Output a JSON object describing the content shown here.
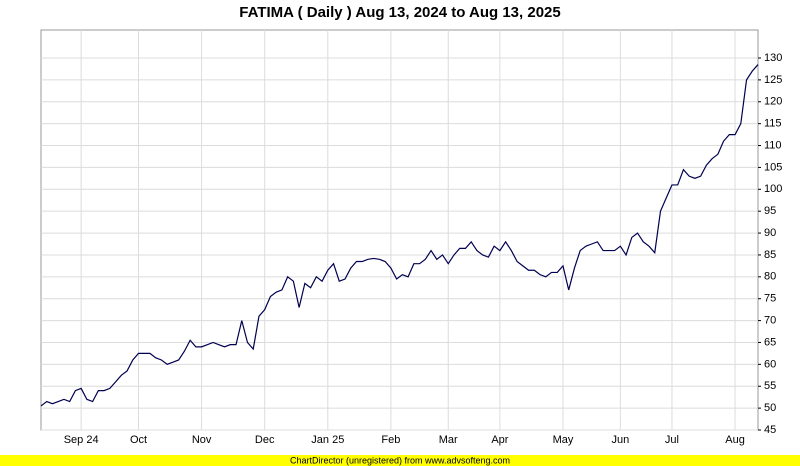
{
  "chart_data": {
    "type": "line",
    "title": "FATIMA ( Daily ) Aug 13, 2024 to Aug 13, 2025",
    "footer": "ChartDirector (unregistered) from www.advsofteng.com",
    "categories": [
      null,
      null,
      null,
      null,
      null,
      null,
      null,
      "Sep 24",
      null,
      null,
      null,
      null,
      null,
      null,
      null,
      null,
      null,
      "Oct",
      null,
      null,
      null,
      null,
      null,
      null,
      null,
      null,
      null,
      null,
      "Nov",
      null,
      null,
      null,
      null,
      null,
      null,
      null,
      null,
      null,
      null,
      "Dec",
      null,
      null,
      null,
      null,
      null,
      null,
      null,
      null,
      null,
      null,
      "Jan 25",
      null,
      null,
      null,
      null,
      null,
      null,
      null,
      null,
      null,
      null,
      "Feb",
      null,
      null,
      null,
      null,
      null,
      null,
      null,
      null,
      null,
      "Mar",
      null,
      null,
      null,
      null,
      null,
      null,
      null,
      null,
      "Apr",
      null,
      null,
      null,
      null,
      null,
      null,
      null,
      null,
      null,
      null,
      "May",
      null,
      null,
      null,
      null,
      null,
      null,
      null,
      null,
      null,
      "Jun",
      null,
      null,
      null,
      null,
      null,
      null,
      null,
      null,
      "Jul",
      null,
      null,
      null,
      null,
      null,
      null,
      null,
      null,
      null,
      null,
      "Aug",
      null,
      null,
      null,
      null
    ],
    "series": [
      {
        "name": "FATIMA",
        "color": "#000050",
        "values": [
          50.5,
          51.5,
          51,
          51.5,
          52,
          51.5,
          54,
          54.5,
          52,
          51.5,
          54,
          54,
          54.5,
          56,
          57.5,
          58.5,
          61,
          62.5,
          62.5,
          62.5,
          61.5,
          61,
          60,
          60.5,
          61,
          63,
          65.5,
          64,
          64,
          64.5,
          65,
          64.5,
          64,
          64.5,
          64.5,
          70,
          65,
          63.5,
          71,
          72.5,
          75.5,
          76.5,
          77,
          80,
          79,
          73,
          78.5,
          77.5,
          80,
          79,
          81.5,
          83,
          79,
          79.5,
          82,
          83.5,
          83.5,
          84,
          84.2,
          84,
          83.5,
          82,
          79.5,
          80.5,
          80,
          83,
          83,
          84,
          86,
          84,
          85,
          83,
          85,
          86.5,
          86.5,
          88,
          86,
          85,
          84.5,
          87,
          86,
          88,
          86,
          83.5,
          82.5,
          81.5,
          81.5,
          80.5,
          80,
          81,
          81,
          82.5,
          77,
          82,
          86,
          87,
          87.5,
          88,
          86,
          86,
          86,
          87,
          85,
          89,
          90,
          88,
          87,
          85.5,
          95,
          98,
          101,
          101,
          104.5,
          103,
          102.5,
          103,
          105.5,
          107,
          108,
          111,
          112.5,
          112.5,
          115,
          125,
          127,
          128.5
        ]
      }
    ],
    "ylim": [
      45,
      136.4
    ],
    "yticks": [
      45,
      50,
      55,
      60,
      65,
      70,
      75,
      80,
      85,
      90,
      95,
      100,
      105,
      110,
      115,
      120,
      125,
      130
    ],
    "grid": true
  }
}
